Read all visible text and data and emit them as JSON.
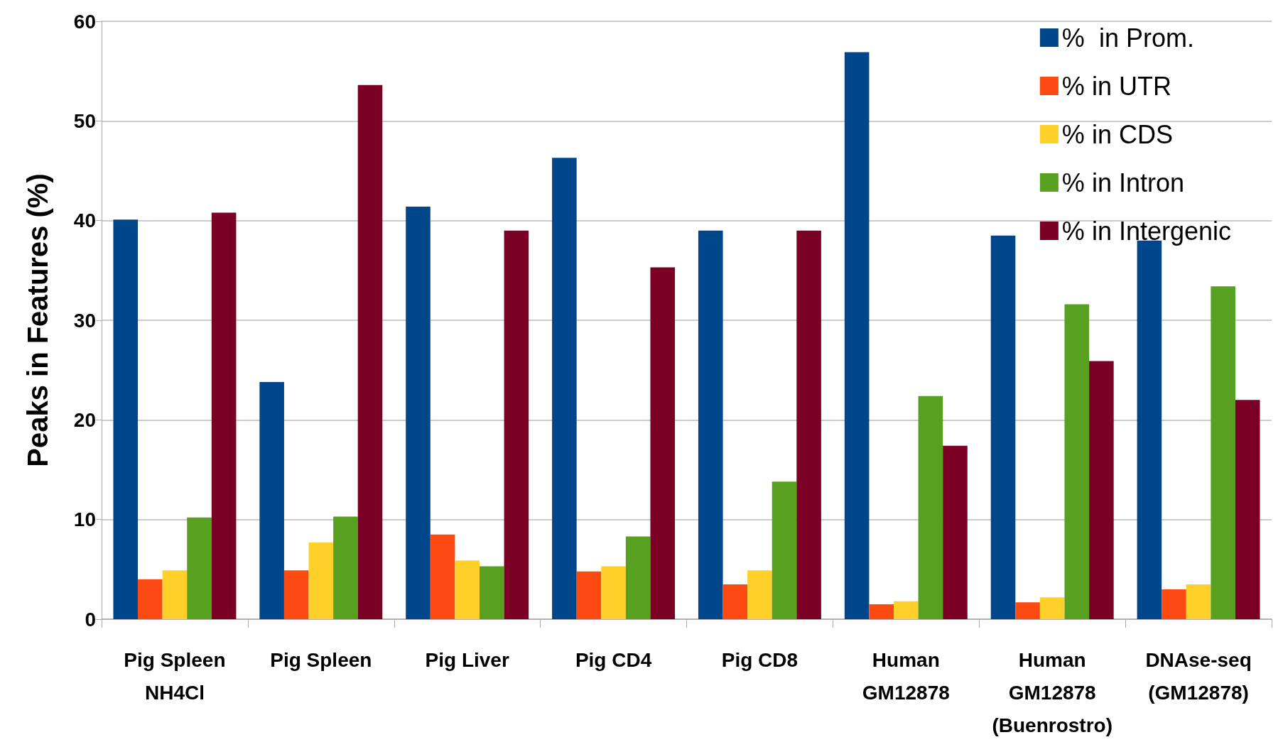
{
  "chart_data": {
    "type": "bar",
    "ylabel": "Peaks in Features (%)",
    "categories": [
      "Pig Spleen\nNH4Cl",
      "Pig Spleen",
      "Pig Liver",
      "Pig CD4",
      "Pig CD8",
      "Human\nGM12878",
      "Human\nGM12878\n(Buenrostro)",
      "DNAse-seq\n(GM12878)"
    ],
    "series": [
      {
        "name": "%  in Prom.",
        "color": "#00468b",
        "values": [
          40.1,
          23.8,
          41.4,
          46.3,
          39.0,
          56.9,
          38.5,
          38.0
        ]
      },
      {
        "name": "% in UTR",
        "color": "#fc4a12",
        "values": [
          4.0,
          4.9,
          8.5,
          4.8,
          3.5,
          1.5,
          1.7,
          3.0
        ]
      },
      {
        "name": "% in CDS",
        "color": "#ffd02a",
        "values": [
          4.9,
          7.7,
          5.9,
          5.3,
          4.9,
          1.8,
          2.2,
          3.5
        ]
      },
      {
        "name": "% in Intron",
        "color": "#57a020",
        "values": [
          10.2,
          10.3,
          5.3,
          8.3,
          13.8,
          22.4,
          31.6,
          33.4
        ]
      },
      {
        "name": "% in Intergenic",
        "color": "#7a0025",
        "values": [
          40.8,
          53.6,
          39.0,
          35.3,
          39.0,
          17.4,
          25.9,
          22.0
        ]
      }
    ],
    "ylim": [
      0,
      60
    ],
    "yticks": [
      0,
      10,
      20,
      30,
      40,
      50,
      60
    ],
    "grid": "y",
    "legend": "top right"
  }
}
